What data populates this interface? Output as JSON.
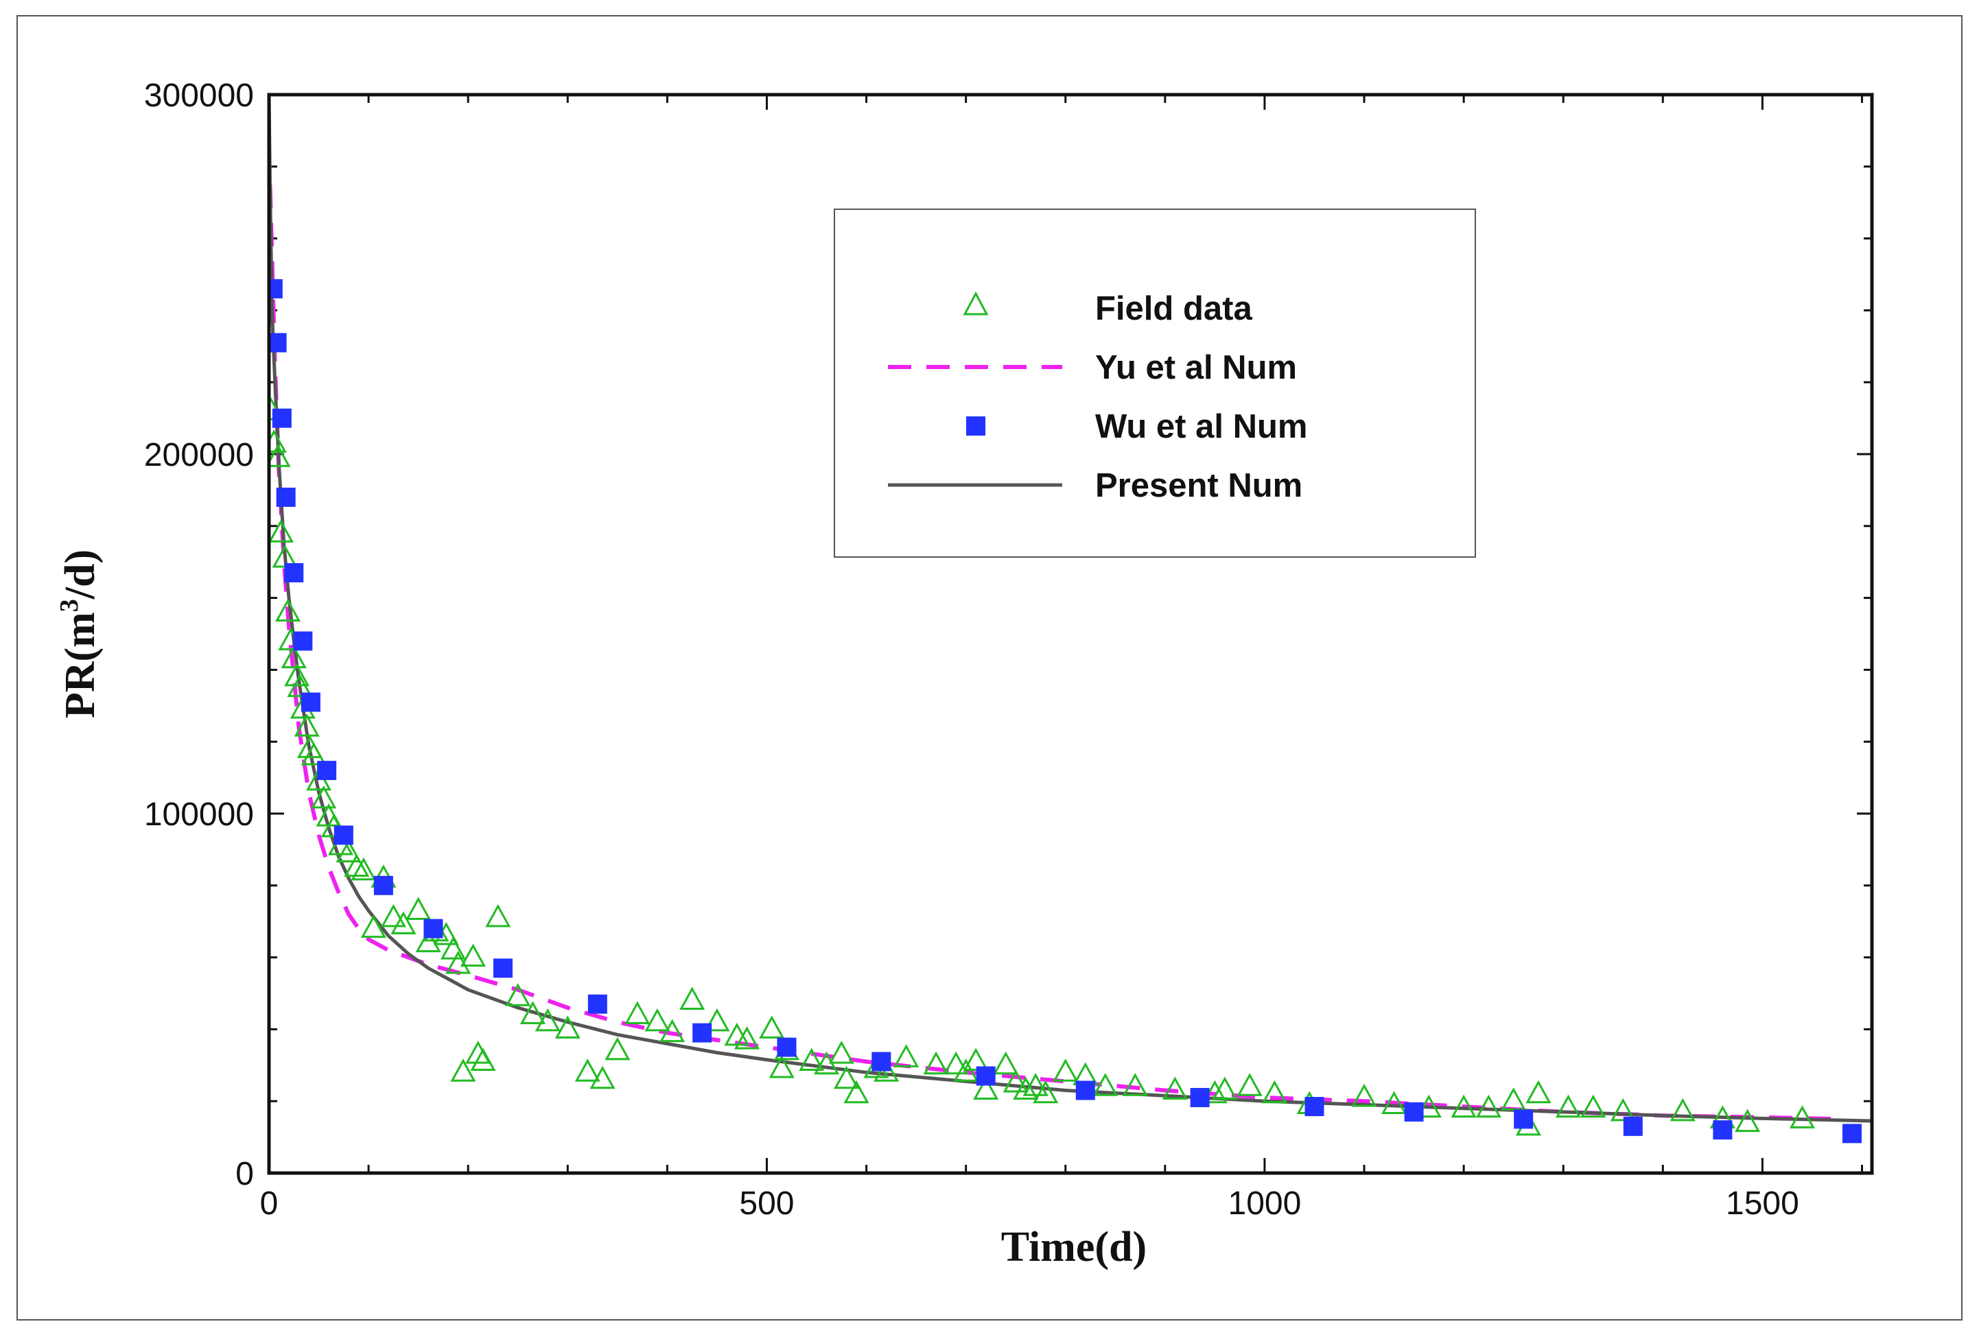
{
  "chart_data": {
    "type": "scatter",
    "xlabel": "Time(d)",
    "ylabel": "PR(m",
    "ylabel_sup": "3",
    "ylabel_tail": "/d)",
    "xlim": [
      0,
      1610
    ],
    "ylim": [
      0,
      300000
    ],
    "x_ticks": [
      0,
      500,
      1000,
      1500
    ],
    "x_tick_labels": [
      "0",
      "500",
      "1000",
      "1500"
    ],
    "y_ticks": [
      0,
      100000,
      200000,
      300000
    ],
    "y_tick_labels": [
      "0",
      "100000",
      "200000",
      "300000"
    ],
    "legend_position": "upper-right",
    "colors": {
      "field": "#22bb22",
      "yu": "#ee22ee",
      "wu": "#2233ff",
      "present": "#555555"
    },
    "series": [
      {
        "name": "Field data",
        "kind": "scatter-triangle",
        "x": [
          2,
          5,
          9,
          12,
          16,
          19,
          22,
          25,
          28,
          31,
          34,
          38,
          41,
          45,
          50,
          55,
          60,
          65,
          72,
          80,
          88,
          95,
          105,
          115,
          125,
          135,
          150,
          160,
          168,
          178,
          185,
          190,
          195,
          205,
          210,
          215,
          230,
          250,
          265,
          280,
          300,
          320,
          335,
          350,
          370,
          390,
          405,
          425,
          450,
          470,
          480,
          505,
          515,
          520,
          545,
          560,
          575,
          580,
          590,
          610,
          620,
          640,
          670,
          690,
          700,
          710,
          720,
          740,
          750,
          760,
          770,
          780,
          800,
          820,
          840,
          870,
          910,
          950,
          960,
          985,
          1010,
          1045,
          1100,
          1130,
          1165,
          1200,
          1225,
          1250,
          1265,
          1275,
          1305,
          1330,
          1360,
          1420,
          1460,
          1485,
          1540
        ],
        "y": [
          212000,
          203000,
          199000,
          178000,
          171000,
          156000,
          148000,
          143000,
          138000,
          135000,
          129000,
          124000,
          118000,
          116000,
          109000,
          104000,
          99000,
          96000,
          91000,
          89000,
          85000,
          84000,
          68000,
          82000,
          71000,
          69000,
          73000,
          64000,
          67000,
          66000,
          62000,
          58000,
          28000,
          60000,
          33000,
          31000,
          71000,
          49000,
          44000,
          42000,
          40000,
          28000,
          26000,
          34000,
          44000,
          42000,
          39000,
          48000,
          42000,
          38000,
          37000,
          40000,
          29000,
          34000,
          31000,
          30000,
          33000,
          26000,
          22000,
          29000,
          28000,
          32000,
          30000,
          30000,
          28000,
          31000,
          23000,
          30000,
          25000,
          23000,
          24000,
          22000,
          28000,
          27000,
          24000,
          24000,
          23000,
          22000,
          23000,
          24000,
          22000,
          19000,
          21000,
          19000,
          18000,
          18000,
          18000,
          20000,
          13000,
          22000,
          18000,
          18000,
          17000,
          17000,
          15000,
          14000,
          15000
        ]
      },
      {
        "name": "Yu et al Num",
        "kind": "dashed-line",
        "x": [
          1,
          3,
          6,
          10,
          15,
          20,
          25,
          30,
          40,
          50,
          60,
          70,
          80,
          90,
          100,
          120,
          140,
          160,
          180,
          200,
          250,
          300,
          350,
          400,
          450,
          500,
          600,
          700,
          800,
          900,
          1000,
          1100,
          1200,
          1300,
          1400,
          1500,
          1580
        ],
        "y": [
          275000,
          255000,
          225000,
          195000,
          170000,
          152000,
          138000,
          124000,
          106000,
          94000,
          85000,
          78000,
          72000,
          68000,
          65000,
          62000,
          60000,
          58000,
          56500,
          55000,
          51000,
          46000,
          42000,
          39000,
          37000,
          35000,
          31000,
          28000,
          25500,
          23000,
          21000,
          20000,
          18500,
          17000,
          16000,
          15500,
          15000
        ]
      },
      {
        "name": "Wu et al Num",
        "kind": "scatter-square",
        "x": [
          4,
          8,
          13,
          17,
          25,
          34,
          42,
          58,
          75,
          115,
          165,
          235,
          330,
          435,
          520,
          615,
          720,
          820,
          935,
          1050,
          1150,
          1260,
          1370,
          1460,
          1590
        ],
        "y": [
          246000,
          231000,
          210000,
          188000,
          167000,
          148000,
          131000,
          112000,
          94000,
          80000,
          68000,
          57000,
          47000,
          39000,
          35000,
          31000,
          27000,
          23000,
          21000,
          18500,
          17000,
          15000,
          13000,
          12000,
          11000
        ]
      },
      {
        "name": "Present Num",
        "kind": "solid-line",
        "x": [
          0,
          1,
          3,
          6,
          10,
          15,
          20,
          25,
          30,
          40,
          50,
          60,
          70,
          80,
          90,
          100,
          120,
          140,
          160,
          180,
          200,
          250,
          300,
          350,
          400,
          450,
          500,
          600,
          700,
          800,
          900,
          1000,
          1100,
          1200,
          1300,
          1400,
          1500,
          1610
        ],
        "y": [
          300000,
          275000,
          240000,
          220000,
          197000,
          175000,
          160000,
          148000,
          137000,
          119000,
          106000,
          96000,
          88000,
          82000,
          77000,
          73000,
          66000,
          61000,
          57000,
          54000,
          51000,
          46000,
          42000,
          38500,
          36000,
          33500,
          31500,
          28000,
          25500,
          23000,
          21500,
          20000,
          19000,
          18000,
          17000,
          16000,
          15200,
          14500
        ]
      }
    ]
  }
}
